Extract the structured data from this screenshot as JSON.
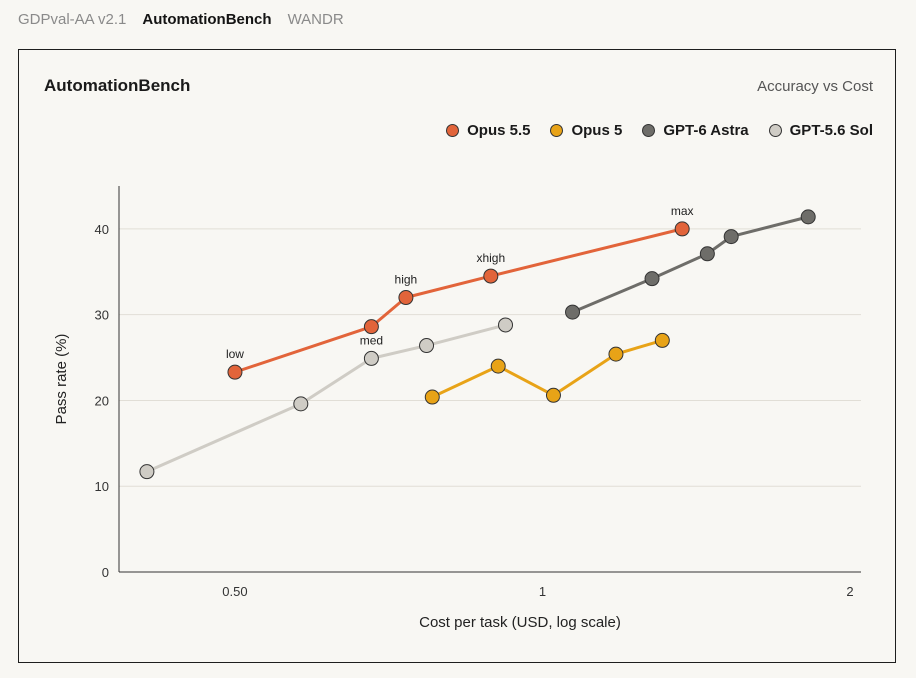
{
  "tabs": [
    {
      "label": "GDPval-AA v2.1",
      "active": false
    },
    {
      "label": "AutomationBench",
      "active": true
    },
    {
      "label": "WANDR",
      "active": false
    }
  ],
  "panel": {
    "title": "AutomationBench",
    "subtitle": "Accuracy vs Cost"
  },
  "chart_data": {
    "type": "line",
    "title": "AutomationBench",
    "subtitle": "Accuracy vs Cost",
    "xlabel": "Cost per task (USD, log scale)",
    "ylabel": "Pass rate (%)",
    "xscale": "log",
    "xlim": [
      0.385,
      2.05
    ],
    "ylim": [
      0,
      45
    ],
    "xticks": [
      0.5,
      1,
      2
    ],
    "xtick_labels": [
      "0.50",
      "1",
      "2"
    ],
    "yticks": [
      0,
      10,
      20,
      30,
      40
    ],
    "grid": "horizontal",
    "legend_position": "top-right",
    "series": [
      {
        "name": "Opus 5.5",
        "color": "#e2643a",
        "points": [
          {
            "x": 0.5,
            "y": 23.3,
            "label": "low"
          },
          {
            "x": 0.68,
            "y": 28.6,
            "label": ""
          },
          {
            "x": 0.735,
            "y": 32.0,
            "label": "high"
          },
          {
            "x": 0.89,
            "y": 34.5,
            "label": "xhigh"
          },
          {
            "x": 1.37,
            "y": 40.0,
            "label": "max"
          }
        ]
      },
      {
        "name": "Opus 5",
        "color": "#e8a317",
        "points": [
          {
            "x": 0.78,
            "y": 20.4
          },
          {
            "x": 0.905,
            "y": 24.0
          },
          {
            "x": 1.025,
            "y": 20.6
          },
          {
            "x": 1.18,
            "y": 25.4
          },
          {
            "x": 1.31,
            "y": 27.0
          }
        ]
      },
      {
        "name": "GPT-6 Astra",
        "color": "#6e6d69",
        "points": [
          {
            "x": 1.07,
            "y": 30.3
          },
          {
            "x": 1.28,
            "y": 34.2
          },
          {
            "x": 1.45,
            "y": 37.1
          },
          {
            "x": 1.53,
            "y": 39.1
          },
          {
            "x": 1.82,
            "y": 41.4
          }
        ]
      },
      {
        "name": "GPT-5.6 Sol",
        "color": "#cfccc5",
        "points": [
          {
            "x": 0.41,
            "y": 11.7
          },
          {
            "x": 0.58,
            "y": 19.6
          },
          {
            "x": 0.68,
            "y": 24.9,
            "label": "med"
          },
          {
            "x": 0.77,
            "y": 26.4
          },
          {
            "x": 0.92,
            "y": 28.8
          }
        ]
      }
    ]
  }
}
